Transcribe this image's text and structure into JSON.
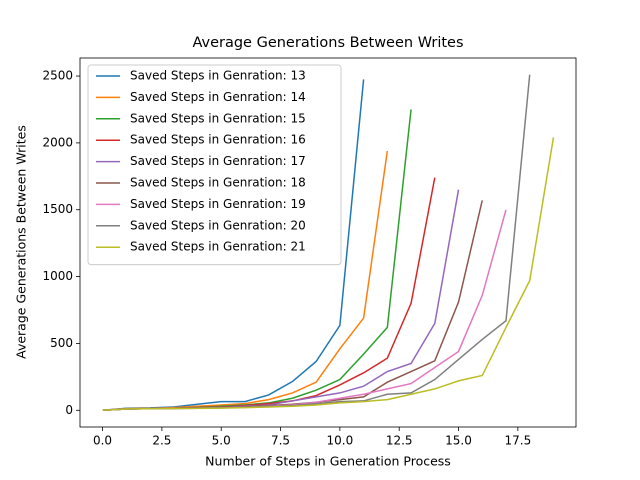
{
  "chart_data": {
    "type": "line",
    "title": "Average Generations Between Writes",
    "x_label": "Number of Steps in Generation Process",
    "y_label": "Average Generations Between Writes",
    "xlim": [
      -0.95,
      19.95
    ],
    "ylim": [
      -125,
      2635
    ],
    "xticks": [
      {
        "value": 0,
        "label": "0.0"
      },
      {
        "value": 2.5,
        "label": "2.5"
      },
      {
        "value": 5,
        "label": "5.0"
      },
      {
        "value": 7.5,
        "label": "7.5"
      },
      {
        "value": 10,
        "label": "10.0"
      },
      {
        "value": 12.5,
        "label": "12.5"
      },
      {
        "value": 15,
        "label": "15.0"
      },
      {
        "value": 17.5,
        "label": "17.5"
      }
    ],
    "yticks": [
      0,
      500,
      1000,
      1500,
      2000,
      2500
    ],
    "grid": false,
    "legend": "upper-left",
    "series": [
      {
        "name": "Saved Steps in Genration: 13",
        "color": "#1f77b4",
        "x": [
          0,
          1,
          2,
          3,
          4,
          5,
          6,
          7,
          8,
          9,
          10,
          11
        ],
        "values": [
          0,
          15,
          18,
          25,
          45,
          65,
          65,
          115,
          215,
          365,
          635,
          2475
        ]
      },
      {
        "name": "Saved Steps in Genration: 14",
        "color": "#ff7f0e",
        "x": [
          0,
          1,
          2,
          3,
          4,
          5,
          6,
          7,
          8,
          9,
          10,
          11,
          12
        ],
        "values": [
          0,
          12,
          15,
          20,
          30,
          40,
          50,
          80,
          130,
          210,
          460,
          690,
          1940
        ]
      },
      {
        "name": "Saved Steps in Genration: 15",
        "color": "#2ca02c",
        "x": [
          0,
          1,
          2,
          3,
          4,
          5,
          6,
          7,
          8,
          9,
          10,
          11,
          12,
          13
        ],
        "values": [
          0,
          10,
          13,
          15,
          22,
          30,
          40,
          55,
          90,
          150,
          230,
          420,
          620,
          2250
        ]
      },
      {
        "name": "Saved Steps in Genration: 16",
        "color": "#d62728",
        "x": [
          0,
          1,
          2,
          3,
          4,
          5,
          6,
          7,
          8,
          9,
          10,
          11,
          12,
          13,
          14
        ],
        "values": [
          0,
          10,
          12,
          15,
          20,
          25,
          35,
          50,
          70,
          110,
          190,
          280,
          390,
          800,
          1740
        ]
      },
      {
        "name": "Saved Steps in Genration: 17",
        "color": "#9467bd",
        "x": [
          0,
          1,
          2,
          3,
          4,
          5,
          6,
          7,
          8,
          9,
          10,
          11,
          12,
          13,
          14,
          15
        ],
        "values": [
          0,
          10,
          12,
          14,
          18,
          22,
          30,
          40,
          70,
          100,
          130,
          180,
          290,
          350,
          650,
          1650
        ]
      },
      {
        "name": "Saved Steps in Genration: 18",
        "color": "#8c564b",
        "x": [
          0,
          1,
          2,
          3,
          4,
          5,
          6,
          7,
          8,
          9,
          10,
          11,
          12,
          13,
          14,
          15,
          16
        ],
        "values": [
          0,
          10,
          12,
          14,
          17,
          20,
          25,
          35,
          45,
          60,
          80,
          100,
          210,
          290,
          370,
          810,
          1570
        ]
      },
      {
        "name": "Saved Steps in Genration: 19",
        "color": "#e377c2",
        "x": [
          0,
          1,
          2,
          3,
          4,
          5,
          6,
          7,
          8,
          9,
          10,
          11,
          12,
          13,
          14,
          15,
          16,
          17
        ],
        "values": [
          0,
          10,
          12,
          13,
          15,
          18,
          22,
          30,
          40,
          60,
          90,
          120,
          160,
          200,
          320,
          440,
          860,
          1500
        ]
      },
      {
        "name": "Saved Steps in Genration: 20",
        "color": "#7f7f7f",
        "x": [
          0,
          1,
          2,
          3,
          4,
          5,
          6,
          7,
          8,
          9,
          10,
          11,
          12,
          13,
          14,
          15,
          16,
          17,
          18
        ],
        "values": [
          0,
          10,
          12,
          13,
          15,
          18,
          22,
          28,
          35,
          50,
          65,
          70,
          120,
          130,
          230,
          380,
          530,
          670,
          2510
        ]
      },
      {
        "name": "Saved Steps in Genration: 21",
        "color": "#bcbd22",
        "x": [
          0,
          1,
          2,
          3,
          4,
          5,
          6,
          7,
          8,
          9,
          10,
          11,
          12,
          13,
          14,
          15,
          16,
          17,
          18,
          19
        ],
        "values": [
          0,
          10,
          12,
          13,
          14,
          16,
          20,
          25,
          30,
          40,
          55,
          65,
          80,
          120,
          160,
          220,
          260,
          620,
          970,
          2040
        ]
      }
    ]
  }
}
